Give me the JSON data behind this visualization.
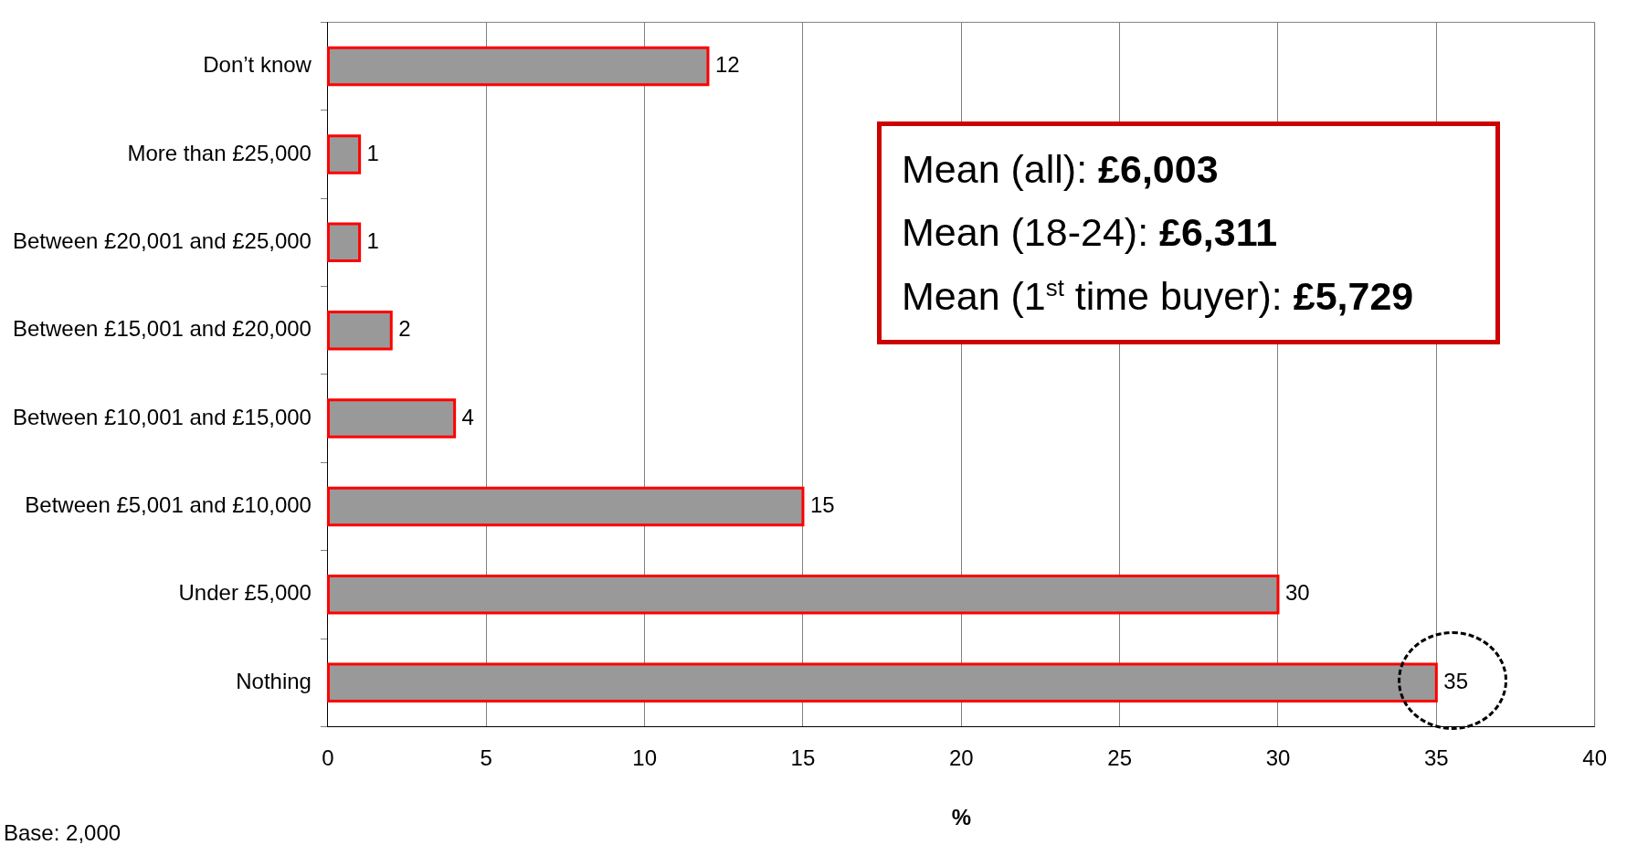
{
  "chart_data": {
    "type": "bar",
    "orientation": "horizontal",
    "xlabel": "%",
    "categories": [
      "Don’t know",
      "More than £25,000",
      "Between £20,001 and £25,000",
      "Between £15,001 and £20,000",
      "Between £10,001 and £15,000",
      "Between £5,001 and £10,000",
      "Under £5,000",
      "Nothing"
    ],
    "values": [
      12,
      1,
      1,
      2,
      4,
      15,
      30,
      35
    ],
    "color": "#999999",
    "xlim": [
      0,
      40
    ],
    "xticks": [
      0,
      5,
      10,
      15,
      20,
      25,
      30,
      35,
      40
    ],
    "grid": "x",
    "legend": false,
    "data_labels": true,
    "annotations": [
      "Mean (all): £6,003",
      "Mean (18-24): £6,311",
      "Mean (1$^{st}$ time buyer): £5,729",
      "Base: 2,000"
    ]
  }
}
